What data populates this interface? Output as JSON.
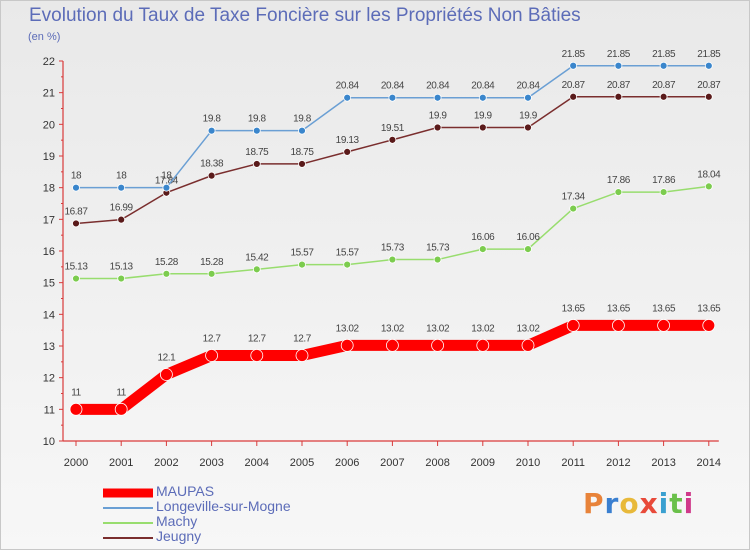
{
  "title": "Evolution du Taux de Taxe Foncière sur les Propriétés Non Bâties",
  "unit_label": "(en %)",
  "logo": "Proxiti",
  "chart_data": {
    "type": "line",
    "title": "Evolution du Taux de Taxe Foncière sur les Propriétés Non Bâties",
    "ylabel": "(en %)",
    "xlabel": "",
    "x": [
      "2000",
      "2001",
      "2002",
      "2003",
      "2004",
      "2005",
      "2006",
      "2007",
      "2008",
      "2009",
      "2010",
      "2011",
      "2012",
      "2013",
      "2014"
    ],
    "yticks": [
      "10",
      "11",
      "12",
      "13",
      "14",
      "15",
      "16",
      "17",
      "18",
      "19",
      "20",
      "21",
      "22"
    ],
    "ylim": [
      10,
      22
    ],
    "grid": false,
    "legend": "bottom-left",
    "series": [
      {
        "name": "MAUPAS",
        "color": "#ff0000",
        "values": [
          11,
          11,
          12.1,
          12.7,
          12.7,
          12.7,
          13.02,
          13.02,
          13.02,
          13.02,
          13.02,
          13.65,
          13.65,
          13.65,
          13.65
        ],
        "labels": [
          "11",
          "11",
          "12.1",
          "12.7",
          "12.7",
          "12.7",
          "13.02",
          "13.02",
          "13.02",
          "13.02",
          "13.02",
          "13.65",
          "13.65",
          "13.65",
          "13.65"
        ]
      },
      {
        "name": "Longeville-sur-Mogne",
        "color": "#6a9fd4",
        "values": [
          18,
          18,
          18,
          19.8,
          19.8,
          19.8,
          20.84,
          20.84,
          20.84,
          20.84,
          20.84,
          21.85,
          21.85,
          21.85,
          21.85
        ],
        "labels": [
          "18",
          "18",
          "18",
          "19.8",
          "19.8",
          "19.8",
          "20.84",
          "20.84",
          "20.84",
          "20.84",
          "20.84",
          "21.85",
          "21.85",
          "21.85",
          "21.85"
        ]
      },
      {
        "name": "Machy",
        "color": "#98dd6e",
        "values": [
          15.13,
          15.13,
          15.28,
          15.28,
          15.42,
          15.57,
          15.57,
          15.73,
          15.73,
          16.06,
          16.06,
          17.34,
          17.86,
          17.86,
          18.04
        ],
        "labels": [
          "15.13",
          "15.13",
          "15.28",
          "15.28",
          "15.42",
          "15.57",
          "15.57",
          "15.73",
          "15.73",
          "16.06",
          "16.06",
          "17.34",
          "17.86",
          "17.86",
          "18.04"
        ]
      },
      {
        "name": "Jeugny",
        "color": "#7a2e2e",
        "values": [
          16.87,
          16.99,
          17.84,
          18.38,
          18.75,
          18.75,
          19.13,
          19.51,
          19.9,
          19.9,
          19.9,
          20.87,
          20.87,
          20.87,
          20.87
        ],
        "labels": [
          "16.87",
          "16.99",
          "17.84",
          "18.38",
          "18.75",
          "18.75",
          "19.13",
          "19.51",
          "19.9",
          "19.9",
          "19.9",
          "20.87",
          "20.87",
          "20.87",
          "20.87"
        ]
      }
    ]
  }
}
